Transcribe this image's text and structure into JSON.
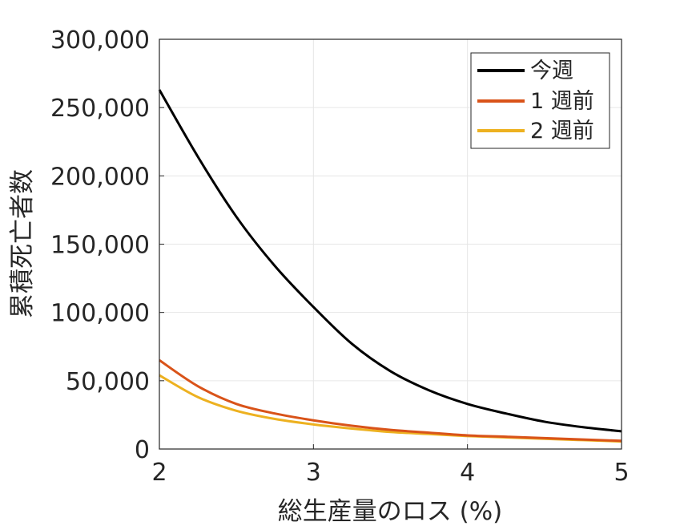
{
  "chart_data": {
    "type": "line",
    "xlabel": "総生産量のロス (%)",
    "ylabel": "累積死亡者数",
    "xlim": [
      2,
      5
    ],
    "ylim": [
      0,
      300000
    ],
    "x_ticks": [
      "2",
      "3",
      "4",
      "5"
    ],
    "y_ticks": [
      "0",
      "50,000",
      "100,000",
      "150,000",
      "200,000",
      "250,000",
      "300,000"
    ],
    "grid": true,
    "legend_position": "top-right",
    "x": [
      2.0,
      2.25,
      2.5,
      2.75,
      3.0,
      3.25,
      3.5,
      3.75,
      4.0,
      4.25,
      4.5,
      4.75,
      5.0
    ],
    "series": [
      {
        "name": "今週",
        "color": "#000000",
        "values": [
          263000,
          214000,
          170000,
          134000,
          104000,
          77000,
          57000,
          43000,
          33000,
          26000,
          20000,
          16000,
          13000
        ]
      },
      {
        "name": "1 週前",
        "color": "#d95319",
        "values": [
          65000,
          46000,
          33000,
          26000,
          21000,
          17000,
          14000,
          12000,
          10000,
          9000,
          8000,
          7000,
          6000
        ]
      },
      {
        "name": "2 週前",
        "color": "#edb120",
        "values": [
          54000,
          38000,
          28000,
          22000,
          18000,
          15000,
          12500,
          11000,
          9500,
          8500,
          7500,
          6500,
          5500
        ]
      }
    ]
  }
}
